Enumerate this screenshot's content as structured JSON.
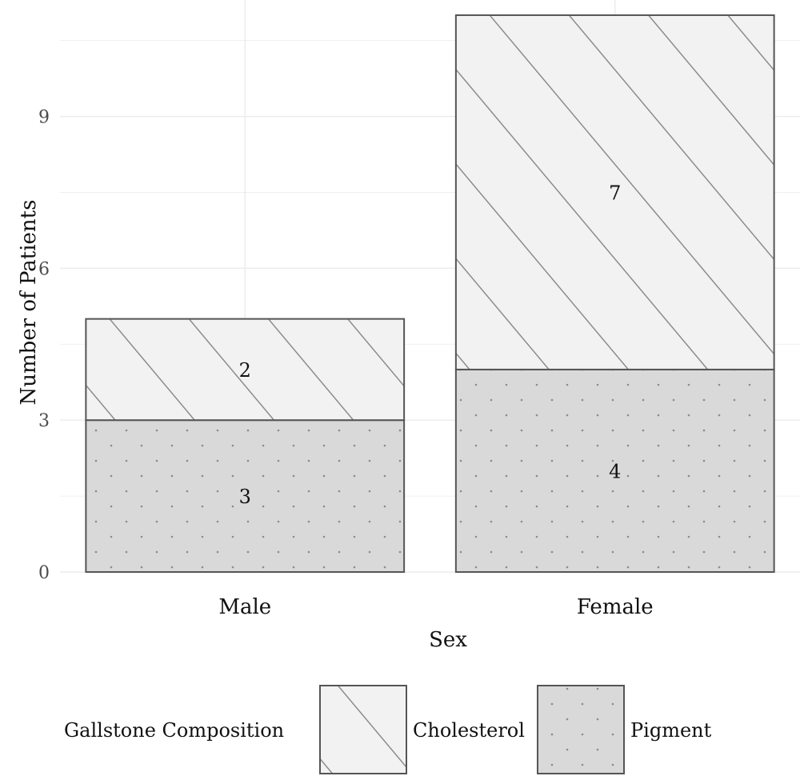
{
  "chart_data": {
    "type": "bar",
    "stacked": true,
    "categories": [
      "Male",
      "Female"
    ],
    "series": [
      {
        "name": "Pigment",
        "values": [
          3,
          4
        ],
        "color": "#d9d9d9",
        "pattern": "dots"
      },
      {
        "name": "Cholesterol",
        "values": [
          2,
          7
        ],
        "color": "#f2f2f2",
        "pattern": "stripes"
      }
    ],
    "xlabel": "Sex",
    "ylabel": "Number of Patients",
    "ylim": [
      0,
      11.3
    ],
    "yticks": [
      0,
      3,
      6,
      9
    ],
    "grid": true,
    "legend_title": "Gallstone Composition",
    "legend_order": [
      "Cholesterol",
      "Pigment"
    ],
    "legend_position": "bottom"
  }
}
